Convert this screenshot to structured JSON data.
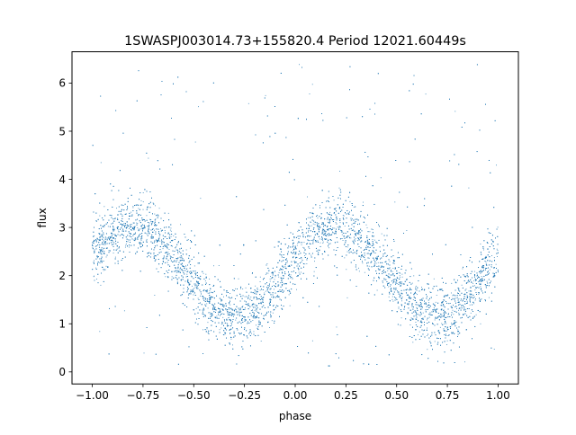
{
  "chart_data": {
    "type": "scatter",
    "title": "1SWASPJ003014.73+155820.4 Period 12021.60449s",
    "xlabel": "phase",
    "ylabel": "flux",
    "xlim": [
      -1.1,
      1.1
    ],
    "ylim": [
      -0.25,
      6.65
    ],
    "x_ticks": [
      -1.0,
      -0.75,
      -0.5,
      -0.25,
      0.0,
      0.25,
      0.5,
      0.75,
      1.0
    ],
    "x_tick_labels": [
      "−1.00",
      "−0.75",
      "−0.50",
      "−0.25",
      "0.00",
      "0.25",
      "0.50",
      "0.75",
      "1.00"
    ],
    "y_ticks": [
      0,
      1,
      2,
      3,
      4,
      5,
      6
    ],
    "y_tick_labels": [
      "0",
      "1",
      "2",
      "3",
      "4",
      "5",
      "6"
    ],
    "point_color": "#1f77b4",
    "grid": false,
    "legend": "none",
    "phase_range": [
      -1.0,
      1.0
    ],
    "phased_light_curve": {
      "mean_flux": 2.1,
      "amplitude": 0.95,
      "maximum_phase": 0.2,
      "minimum_phase": -0.3,
      "scatter_sigma": 0.32,
      "n_points": 9000,
      "outlier_fraction": 0.06,
      "outlier_flux_range": [
        0.05,
        6.4
      ]
    },
    "binned_points": [
      {
        "phase": -1.0,
        "flux": 2.6
      },
      {
        "phase": -0.9,
        "flux": 2.85
      },
      {
        "phase": -0.8,
        "flux": 3.05
      },
      {
        "phase": -0.7,
        "flux": 2.95
      },
      {
        "phase": -0.6,
        "flux": 2.6
      },
      {
        "phase": -0.5,
        "flux": 2.15
      },
      {
        "phase": -0.4,
        "flux": 1.65
      },
      {
        "phase": -0.3,
        "flux": 1.2
      },
      {
        "phase": -0.2,
        "flux": 1.3
      },
      {
        "phase": -0.1,
        "flux": 1.9
      },
      {
        "phase": 0.0,
        "flux": 2.45
      },
      {
        "phase": 0.1,
        "flux": 2.85
      },
      {
        "phase": 0.2,
        "flux": 3.05
      },
      {
        "phase": 0.3,
        "flux": 2.95
      },
      {
        "phase": 0.4,
        "flux": 2.6
      },
      {
        "phase": 0.5,
        "flux": 2.15
      },
      {
        "phase": 0.6,
        "flux": 1.65
      },
      {
        "phase": 0.7,
        "flux": 1.2
      },
      {
        "phase": 0.8,
        "flux": 1.3
      },
      {
        "phase": 0.9,
        "flux": 1.9
      },
      {
        "phase": 1.0,
        "flux": 2.45
      }
    ]
  }
}
